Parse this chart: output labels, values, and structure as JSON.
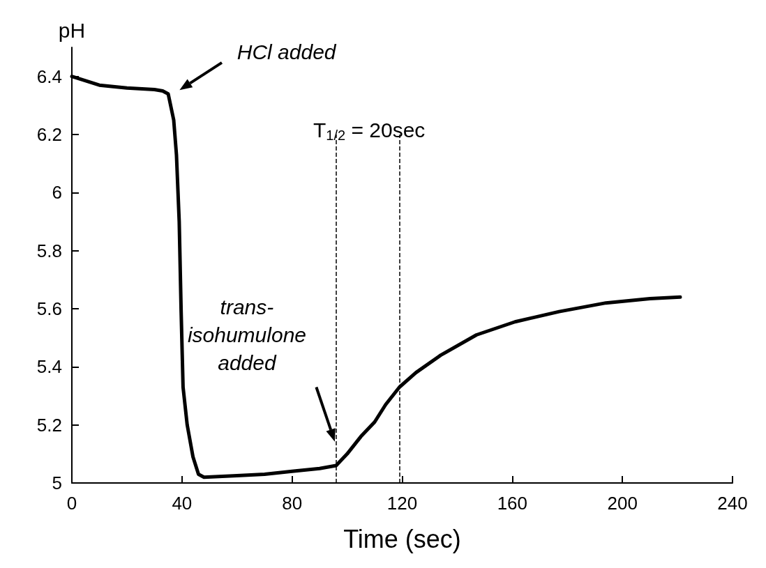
{
  "chart_data": {
    "type": "line",
    "xlabel": "Time (sec)",
    "ylabel": "pH",
    "x": [
      0,
      5,
      10,
      20,
      30,
      33,
      35,
      37,
      38,
      39,
      39.7,
      40.4,
      41.9,
      44,
      46,
      48,
      60,
      70,
      80,
      90,
      96,
      100,
      105,
      110,
      114,
      119,
      125,
      134,
      147,
      161,
      177,
      194,
      210,
      221
    ],
    "series": [
      {
        "color": "#000000",
        "values": [
          6.4,
          6.385,
          6.37,
          6.36,
          6.355,
          6.35,
          6.34,
          6.25,
          6.13,
          5.9,
          5.59,
          5.33,
          5.2,
          5.09,
          5.03,
          5.02,
          5.025,
          5.03,
          5.04,
          5.05,
          5.06,
          5.1,
          5.16,
          5.21,
          5.27,
          5.33,
          5.38,
          5.44,
          5.51,
          5.555,
          5.59,
          5.62,
          5.635,
          5.64
        ]
      }
    ],
    "xlim": [
      0,
      240
    ],
    "xticks": [
      0,
      40,
      80,
      120,
      160,
      200,
      240
    ],
    "ylim": [
      5,
      6.5
    ],
    "yticks": [
      5,
      5.2,
      5.4,
      5.6,
      5.8,
      6,
      6.2,
      6.4
    ],
    "grid": false,
    "marker": "none",
    "line_style": "solid",
    "ref_lines": [
      {
        "axis": "x",
        "value": 96,
        "line_style": "dashed",
        "color": "#000000"
      },
      {
        "axis": "x",
        "value": 119,
        "line_style": "dashed",
        "color": "#000000"
      }
    ],
    "annotations": [
      "HCl added",
      "trans-\nisohumulone\nadded",
      "T$_{1/2}$ = 20sec"
    ]
  }
}
